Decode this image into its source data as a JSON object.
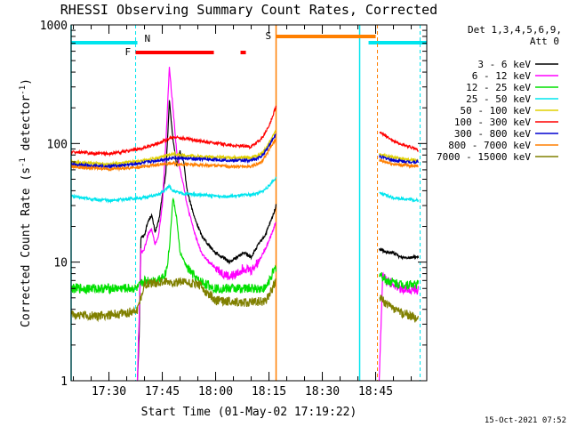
{
  "chart_data": {
    "type": "line",
    "title": "RHESSI Observing Summary Count Rates, Corrected",
    "xlabel": "Start Time (01-May-02 17:19:22)",
    "ylabel_main": "Corrected Count Rate (s",
    "ylabel_sup1": "-1",
    "ylabel_mid": " detector",
    "ylabel_sup2": "-1",
    "ylabel_end": ")",
    "y_scale": "log",
    "ylim": [
      1,
      1000
    ],
    "y_ticks": [
      {
        "value": 1,
        "label": "1"
      },
      {
        "value": 10,
        "label": "10"
      },
      {
        "value": 100,
        "label": "100"
      },
      {
        "value": 1000,
        "label": "1000"
      }
    ],
    "xlim": [
      "17:19:22",
      "18:59:22"
    ],
    "x_ticks": [
      {
        "value": "17:30",
        "label": "17:30"
      },
      {
        "value": "17:45",
        "label": "17:45"
      },
      {
        "value": "18:00",
        "label": "18:00"
      },
      {
        "value": "18:15",
        "label": "18:15"
      },
      {
        "value": "18:30",
        "label": "18:30"
      },
      {
        "value": "18:45",
        "label": "18:45"
      }
    ],
    "legend_header_1": "Det 1,3,4,5,6,9,",
    "legend_header_2": "Att 0",
    "legend_placement": "right",
    "timestamp": "15-Oct-2021 07:52",
    "markers": {
      "night": {
        "label": "N",
        "color": "#00e5ee",
        "bars": [
          [
            "17:19:22",
            "17:38:00"
          ],
          [
            "18:43:00",
            "18:59:22"
          ]
        ],
        "solid_lines": [
          "17:19:22",
          "18:40:30"
        ],
        "dashed_lines": [
          "17:37:30",
          "18:57:30"
        ]
      },
      "flare": {
        "label": "F",
        "color": "#ff0000",
        "bars": [
          [
            "17:37:30",
            "17:59:30"
          ],
          [
            "18:07:00",
            "18:08:30"
          ]
        ]
      },
      "saa": {
        "label": "S",
        "color": "#ff7f00",
        "bars": [
          [
            "18:17:00",
            "18:45:00"
          ]
        ],
        "solid_lines": [
          "18:17:00"
        ],
        "dashed_lines": [
          "18:45:30"
        ]
      }
    },
    "gaps": [
      [
        "18:17:00",
        "18:46:00"
      ]
    ],
    "series": [
      {
        "name": "3 - 6 keV",
        "color": "#000000",
        "points": [
          [
            "17:38:00",
            1.0
          ],
          [
            "17:38:30",
            2.5
          ],
          [
            "17:39:00",
            16
          ],
          [
            "17:40:00",
            17
          ],
          [
            "17:41:00",
            22
          ],
          [
            "17:42:00",
            25
          ],
          [
            "17:43:00",
            18
          ],
          [
            "17:44:00",
            22
          ],
          [
            "17:45:00",
            36
          ],
          [
            "17:46:00",
            55
          ],
          [
            "17:47:00",
            230
          ],
          [
            "17:48:00",
            110
          ],
          [
            "17:49:00",
            65
          ],
          [
            "17:50:00",
            85
          ],
          [
            "17:51:00",
            70
          ],
          [
            "17:52:00",
            40
          ],
          [
            "17:54:00",
            24
          ],
          [
            "17:56:00",
            17
          ],
          [
            "17:58:00",
            14
          ],
          [
            "18:00:00",
            12
          ],
          [
            "18:02:00",
            11
          ],
          [
            "18:04:00",
            10
          ],
          [
            "18:06:00",
            11
          ],
          [
            "18:08:00",
            12
          ],
          [
            "18:10:00",
            11
          ],
          [
            "18:12:00",
            14
          ],
          [
            "18:14:00",
            17
          ],
          [
            "18:16:00",
            24
          ],
          [
            "18:17:00",
            30
          ],
          [
            "18:46:00",
            13
          ],
          [
            "18:48:00",
            12
          ],
          [
            "18:50:00",
            12
          ],
          [
            "18:52:00",
            11
          ],
          [
            "18:54:00",
            11
          ],
          [
            "18:57:00",
            11
          ]
        ]
      },
      {
        "name": "6 - 12 keV",
        "color": "#ff00ff",
        "points": [
          [
            "17:38:00",
            1.0
          ],
          [
            "17:39:00",
            12
          ],
          [
            "17:40:00",
            13
          ],
          [
            "17:41:00",
            17
          ],
          [
            "17:42:00",
            19
          ],
          [
            "17:43:00",
            14
          ],
          [
            "17:44:00",
            17
          ],
          [
            "17:45:00",
            30
          ],
          [
            "17:46:00",
            100
          ],
          [
            "17:47:00",
            440
          ],
          [
            "17:48:00",
            200
          ],
          [
            "17:49:00",
            90
          ],
          [
            "17:50:00",
            60
          ],
          [
            "17:51:00",
            45
          ],
          [
            "17:52:00",
            30
          ],
          [
            "17:54:00",
            18
          ],
          [
            "17:56:00",
            12
          ],
          [
            "17:58:00",
            10
          ],
          [
            "18:00:00",
            9
          ],
          [
            "18:02:00",
            8
          ],
          [
            "18:04:00",
            7.5
          ],
          [
            "18:06:00",
            8
          ],
          [
            "18:08:00",
            9
          ],
          [
            "18:10:00",
            8.5
          ],
          [
            "18:12:00",
            10
          ],
          [
            "18:14:00",
            13
          ],
          [
            "18:16:00",
            18
          ],
          [
            "18:17:00",
            22
          ],
          [
            "18:46:00",
            1.0
          ],
          [
            "18:47:00",
            8
          ],
          [
            "18:48:00",
            7
          ],
          [
            "18:50:00",
            6.5
          ],
          [
            "18:52:00",
            6
          ],
          [
            "18:54:00",
            6
          ],
          [
            "18:57:00",
            5.8
          ]
        ]
      },
      {
        "name": "12 - 25 keV",
        "color": "#00e000",
        "points": [
          [
            "17:19:22",
            6
          ],
          [
            "17:25:00",
            6
          ],
          [
            "17:30:00",
            6
          ],
          [
            "17:35:00",
            6
          ],
          [
            "17:38:00",
            6
          ],
          [
            "17:40:00",
            7
          ],
          [
            "17:43:00",
            7
          ],
          [
            "17:45:00",
            7.5
          ],
          [
            "17:46:00",
            8
          ],
          [
            "17:47:00",
            13
          ],
          [
            "17:48:00",
            35
          ],
          [
            "17:49:00",
            24
          ],
          [
            "17:50:00",
            12
          ],
          [
            "17:52:00",
            9
          ],
          [
            "17:55:00",
            7
          ],
          [
            "18:00:00",
            6
          ],
          [
            "18:05:00",
            6
          ],
          [
            "18:10:00",
            6
          ],
          [
            "18:14:00",
            6
          ],
          [
            "18:16:00",
            8
          ],
          [
            "18:17:00",
            9
          ],
          [
            "18:46:00",
            8
          ],
          [
            "18:48:00",
            7
          ],
          [
            "18:52:00",
            6.5
          ],
          [
            "18:57:00",
            6.5
          ]
        ]
      },
      {
        "name": "25 - 50 keV",
        "color": "#00e5ee",
        "points": [
          [
            "17:19:22",
            36
          ],
          [
            "17:25:00",
            34
          ],
          [
            "17:30:00",
            33
          ],
          [
            "17:35:00",
            34
          ],
          [
            "17:40:00",
            35
          ],
          [
            "17:44:00",
            37
          ],
          [
            "17:46:00",
            41
          ],
          [
            "17:47:00",
            44
          ],
          [
            "17:48:00",
            40
          ],
          [
            "17:50:00",
            38
          ],
          [
            "17:55:00",
            37
          ],
          [
            "18:00:00",
            36
          ],
          [
            "18:05:00",
            36
          ],
          [
            "18:10:00",
            37
          ],
          [
            "18:13:00",
            39
          ],
          [
            "18:15:00",
            44
          ],
          [
            "18:17:00",
            52
          ],
          [
            "18:46:00",
            38
          ],
          [
            "18:50:00",
            35
          ],
          [
            "18:54:00",
            34
          ],
          [
            "18:57:00",
            33
          ]
        ]
      },
      {
        "name": "50 - 100 keV",
        "color": "#e0d000",
        "points": [
          [
            "17:19:22",
            70
          ],
          [
            "17:25:00",
            68
          ],
          [
            "17:30:00",
            67
          ],
          [
            "17:35:00",
            69
          ],
          [
            "17:40:00",
            72
          ],
          [
            "17:45:00",
            77
          ],
          [
            "17:48:00",
            82
          ],
          [
            "17:50:00",
            80
          ],
          [
            "17:55:00",
            78
          ],
          [
            "18:00:00",
            77
          ],
          [
            "18:05:00",
            76
          ],
          [
            "18:10:00",
            76
          ],
          [
            "18:13:00",
            82
          ],
          [
            "18:15:00",
            100
          ],
          [
            "18:17:00",
            130
          ],
          [
            "18:46:00",
            82
          ],
          [
            "18:50:00",
            76
          ],
          [
            "18:54:00",
            73
          ],
          [
            "18:57:00",
            72
          ]
        ]
      },
      {
        "name": "100 - 300 keV",
        "color": "#ff0000",
        "points": [
          [
            "17:19:22",
            85
          ],
          [
            "17:25:00",
            83
          ],
          [
            "17:30:00",
            82
          ],
          [
            "17:35:00",
            86
          ],
          [
            "17:40:00",
            92
          ],
          [
            "17:45:00",
            104
          ],
          [
            "17:48:00",
            113
          ],
          [
            "17:50:00",
            112
          ],
          [
            "17:55:00",
            106
          ],
          [
            "18:00:00",
            101
          ],
          [
            "18:05:00",
            96
          ],
          [
            "18:10:00",
            94
          ],
          [
            "18:13:00",
            110
          ],
          [
            "18:15:00",
            140
          ],
          [
            "18:17:00",
            205
          ],
          [
            "18:46:00",
            125
          ],
          [
            "18:50:00",
            105
          ],
          [
            "18:54:00",
            95
          ],
          [
            "18:57:00",
            88
          ]
        ]
      },
      {
        "name": "300 - 800 keV",
        "color": "#0000d0",
        "points": [
          [
            "17:19:22",
            67
          ],
          [
            "17:25:00",
            65
          ],
          [
            "17:30:00",
            64
          ],
          [
            "17:35:00",
            66
          ],
          [
            "17:40:00",
            69
          ],
          [
            "17:45:00",
            73
          ],
          [
            "17:48:00",
            76
          ],
          [
            "17:50:00",
            75
          ],
          [
            "17:55:00",
            74
          ],
          [
            "18:00:00",
            73
          ],
          [
            "18:05:00",
            72
          ],
          [
            "18:10:00",
            72
          ],
          [
            "18:13:00",
            78
          ],
          [
            "18:15:00",
            96
          ],
          [
            "18:17:00",
            120
          ],
          [
            "18:46:00",
            78
          ],
          [
            "18:50:00",
            72
          ],
          [
            "18:54:00",
            70
          ],
          [
            "18:57:00",
            70
          ]
        ]
      },
      {
        "name": "800 - 7000 keV",
        "color": "#ff7f00",
        "points": [
          [
            "17:19:22",
            64
          ],
          [
            "17:25:00",
            62
          ],
          [
            "17:30:00",
            61
          ],
          [
            "17:35:00",
            62
          ],
          [
            "17:40:00",
            64
          ],
          [
            "17:45:00",
            67
          ],
          [
            "17:48:00",
            68
          ],
          [
            "17:50:00",
            67
          ],
          [
            "17:55:00",
            66
          ],
          [
            "18:00:00",
            65
          ],
          [
            "18:05:00",
            64
          ],
          [
            "18:10:00",
            64
          ],
          [
            "18:13:00",
            70
          ],
          [
            "18:15:00",
            88
          ],
          [
            "18:17:00",
            110
          ],
          [
            "18:46:00",
            72
          ],
          [
            "18:50:00",
            67
          ],
          [
            "18:54:00",
            65
          ],
          [
            "18:57:00",
            65
          ]
        ]
      },
      {
        "name": "7000 - 15000 keV",
        "color": "#808000",
        "points": [
          [
            "17:19:22",
            3.6
          ],
          [
            "17:25:00",
            3.5
          ],
          [
            "17:30:00",
            3.6
          ],
          [
            "17:35:00",
            3.7
          ],
          [
            "17:38:00",
            4
          ],
          [
            "17:40:00",
            6.5
          ],
          [
            "17:45:00",
            6.8
          ],
          [
            "17:50:00",
            6.8
          ],
          [
            "17:55:00",
            6.5
          ],
          [
            "18:00:00",
            4.8
          ],
          [
            "18:05:00",
            4.6
          ],
          [
            "18:10:00",
            4.6
          ],
          [
            "18:14:00",
            4.7
          ],
          [
            "18:16:00",
            6
          ],
          [
            "18:17:00",
            7
          ],
          [
            "18:46:00",
            5
          ],
          [
            "18:50:00",
            4
          ],
          [
            "18:54:00",
            3.6
          ],
          [
            "18:57:00",
            3.3
          ]
        ]
      }
    ]
  }
}
